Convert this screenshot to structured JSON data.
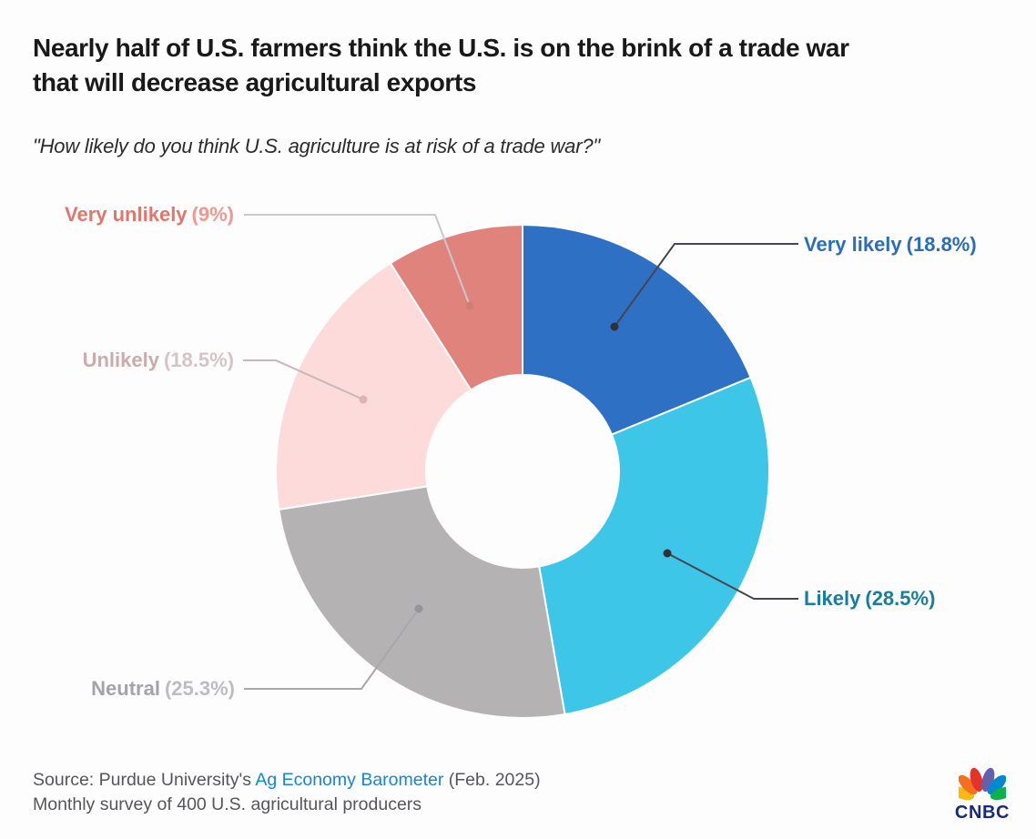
{
  "header": {
    "title_lines": [
      "Nearly half of U.S. farmers think the U.S. is on the brink of a trade war",
      "that will decrease agricultural exports"
    ],
    "subtitle": "\"How likely do you think U.S. agriculture is at risk of a trade war?\""
  },
  "chart_data": {
    "type": "pie",
    "subtype": "donut",
    "title": "Nearly half of U.S. farmers think the U.S. is on the brink of a trade war that will decrease agricultural exports",
    "question": "\"How likely do you think U.S. agriculture is at risk of a trade war?\"",
    "unit": "%",
    "start": "top",
    "direction": "clockwise",
    "legend": "none (direct callout labels)",
    "slices": [
      {
        "name": "Very likely",
        "value": 18.8,
        "pct_label": "(18.8%)",
        "color": "#2e71c4",
        "name_color": "#2b6cbb",
        "pct_color": "#2b6cbb"
      },
      {
        "name": "Likely",
        "value": 28.5,
        "pct_label": "(28.5%)",
        "color": "#3ec6e8",
        "name_color": "#187d9e",
        "pct_color": "#187d9e"
      },
      {
        "name": "Neutral",
        "value": 25.3,
        "pct_label": "(25.3%)",
        "color": "#b5b2b4",
        "name_color": "#a5a3a7",
        "pct_color": "#bebcc0"
      },
      {
        "name": "Unlikely",
        "value": 18.5,
        "pct_label": "(18.5%)",
        "color": "#fcdbda",
        "name_color": "#c9abb0",
        "pct_color": "#d7c3c7"
      },
      {
        "name": "Very unlikely",
        "value": 9.0,
        "pct_label": "(9%)",
        "color": "#e0837c",
        "name_color": "#e3756c",
        "pct_color": "#f0988f"
      }
    ]
  },
  "footer": {
    "source_prefix": "Source: Purdue University's ",
    "source_link": "Ag Economy Barometer",
    "source_suffix": " (Feb. 2025)",
    "source_line2": "Monthly survey of 400 U.S. agricultural producers",
    "link_color": "#1286dc"
  },
  "logo": {
    "text": "CNBC",
    "feather_colors": [
      "#fcb711",
      "#f37021",
      "#e5332a",
      "#6460aa",
      "#0089d0",
      "#0db14b"
    ]
  }
}
